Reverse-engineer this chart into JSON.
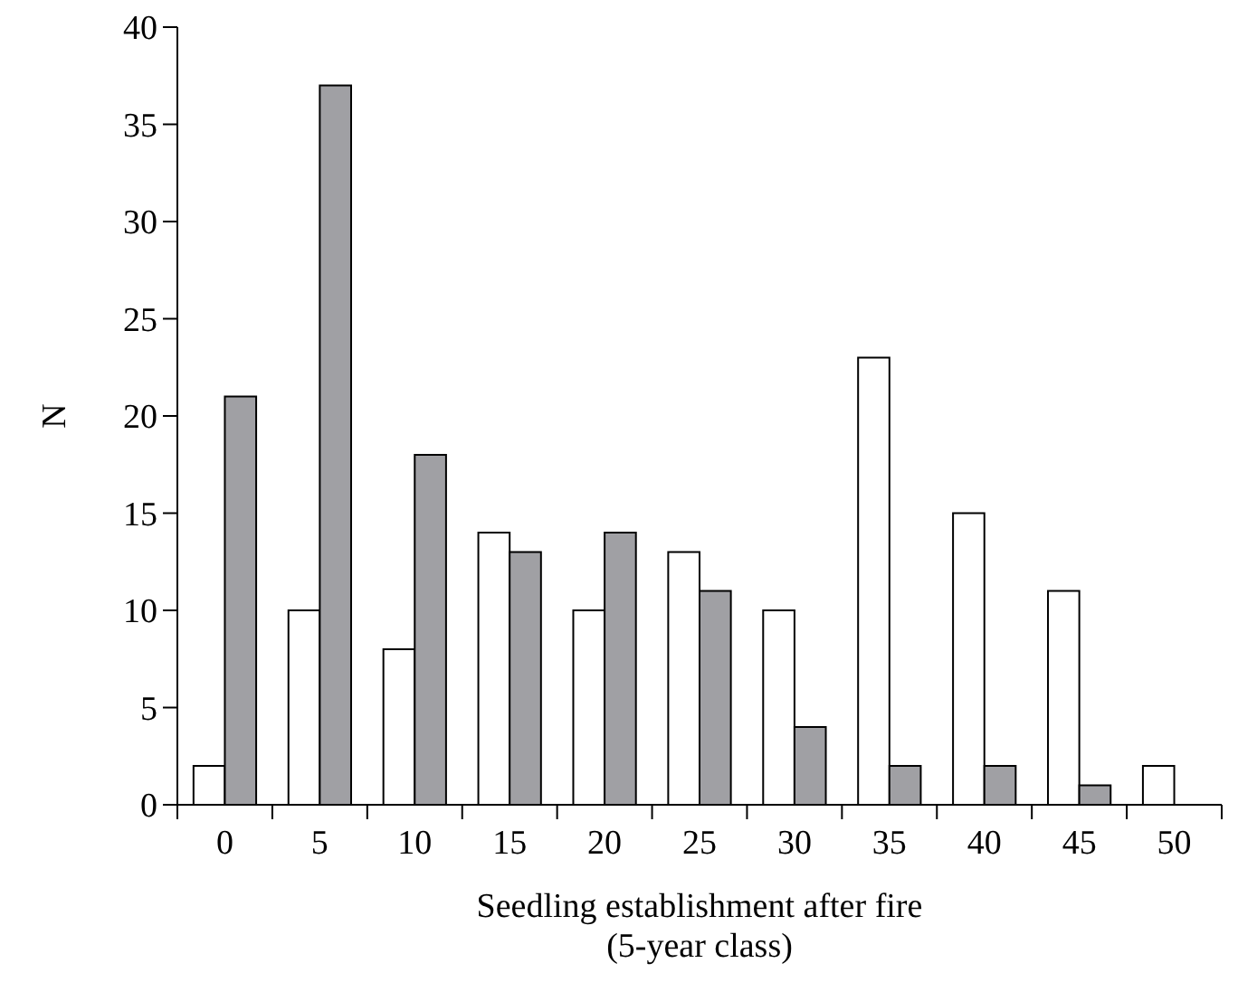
{
  "chart_data": {
    "type": "bar",
    "xlabel": "Seedling establishment after fire\n(5-year class)",
    "ylabel": "N",
    "categories": [
      "0",
      "5",
      "10",
      "15",
      "20",
      "25",
      "30",
      "35",
      "40",
      "45",
      "50"
    ],
    "series": [
      {
        "color": "#ffffff",
        "values": [
          2,
          10,
          8,
          14,
          10,
          13,
          10,
          23,
          15,
          11,
          2
        ]
      },
      {
        "color": "#a0a0a4",
        "values": [
          21,
          37,
          18,
          13,
          14,
          11,
          4,
          2,
          2,
          1,
          0
        ]
      }
    ],
    "ylim": [
      0,
      40
    ],
    "yticks": [
      0,
      5,
      10,
      15,
      20,
      25,
      30,
      35,
      40
    ],
    "grid": false
  }
}
